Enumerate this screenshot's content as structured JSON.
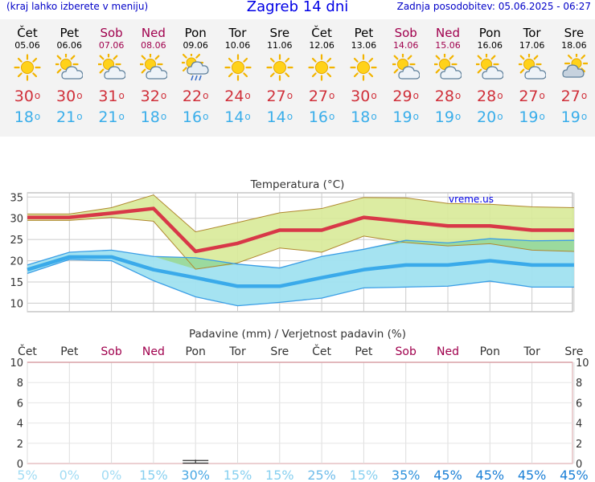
{
  "header": {
    "location_hint": "(kraj lahko izberete v meniju)",
    "title": "Zagreb 14 dni",
    "updated": "Zadnja posodobitev: 05.06.2025 - 06:27"
  },
  "days": [
    {
      "name": "Čet",
      "date": "05.06",
      "weekend": false,
      "icon": "sun-icon",
      "tmax": "30",
      "tmin": "18"
    },
    {
      "name": "Pet",
      "date": "06.06",
      "weekend": false,
      "icon": "sun-cloud-icon",
      "tmax": "30",
      "tmin": "21"
    },
    {
      "name": "Sob",
      "date": "07.06",
      "weekend": true,
      "icon": "sun-cloud-icon",
      "tmax": "31",
      "tmin": "21"
    },
    {
      "name": "Ned",
      "date": "08.06",
      "weekend": true,
      "icon": "sun-cloud-icon",
      "tmax": "32",
      "tmin": "18"
    },
    {
      "name": "Pon",
      "date": "09.06",
      "weekend": false,
      "icon": "sun-cloud-rain-icon",
      "tmax": "22",
      "tmin": "16"
    },
    {
      "name": "Tor",
      "date": "10.06",
      "weekend": false,
      "icon": "sun-icon",
      "tmax": "24",
      "tmin": "14"
    },
    {
      "name": "Sre",
      "date": "11.06",
      "weekend": false,
      "icon": "sun-icon",
      "tmax": "27",
      "tmin": "14"
    },
    {
      "name": "Čet",
      "date": "12.06",
      "weekend": false,
      "icon": "sun-icon",
      "tmax": "27",
      "tmin": "16"
    },
    {
      "name": "Pet",
      "date": "13.06",
      "weekend": false,
      "icon": "sun-icon",
      "tmax": "30",
      "tmin": "18"
    },
    {
      "name": "Sob",
      "date": "14.06",
      "weekend": true,
      "icon": "sun-cloud-icon",
      "tmax": "29",
      "tmin": "19"
    },
    {
      "name": "Ned",
      "date": "15.06",
      "weekend": true,
      "icon": "sun-cloud-icon",
      "tmax": "28",
      "tmin": "19"
    },
    {
      "name": "Pon",
      "date": "16.06",
      "weekend": false,
      "icon": "sun-cloud-icon",
      "tmax": "28",
      "tmin": "20"
    },
    {
      "name": "Tor",
      "date": "17.06",
      "weekend": false,
      "icon": "sun-cloud-icon",
      "tmax": "27",
      "tmin": "19"
    },
    {
      "name": "Sre",
      "date": "18.06",
      "weekend": false,
      "icon": "cloud-sun-icon",
      "tmax": "27",
      "tmin": "19"
    }
  ],
  "colors": {
    "max_line": "#d83848",
    "min_line": "#3aaaea",
    "max_band": "#d8ea98",
    "max_band_edge": "#b0882e",
    "min_band": "#a0e2f0",
    "min_band_edge": "#3a9ee6",
    "overlap": "#9ad890",
    "weekend_text": "#a0004d",
    "title_blue": "#0000e6"
  },
  "chart_data": [
    {
      "type": "line",
      "title": "Temperatura",
      "unit": "(°C)",
      "watermark": "vreme.us",
      "ylim": [
        8,
        36
      ],
      "yticks": [
        "10",
        "15",
        "20",
        "25",
        "30",
        "35"
      ],
      "grid": true,
      "x": [
        "05.06",
        "06.06",
        "07.06",
        "08.06",
        "09.06",
        "10.06",
        "11.06",
        "12.06",
        "13.06",
        "14.06",
        "15.06",
        "16.06",
        "17.06",
        "18.06"
      ],
      "series": [
        {
          "role": "max",
          "values": [
            30.2,
            30.2,
            31.2,
            32.3,
            22.2,
            24.1,
            27.2,
            27.2,
            30.2,
            29.2,
            28.2,
            28.2,
            27.2,
            27.2
          ]
        },
        {
          "role": "max_upper",
          "values": [
            31,
            31,
            32.5,
            35.5,
            26.8,
            29,
            31.3,
            32.3,
            34.9,
            34.8,
            33.5,
            33.3,
            32.7,
            32.5
          ]
        },
        {
          "role": "max_lower",
          "values": [
            29.5,
            29.5,
            30.2,
            29.3,
            18,
            19.5,
            23,
            22,
            25.8,
            24.3,
            23.5,
            24,
            22.5,
            22.2
          ]
        },
        {
          "role": "min",
          "values": [
            17.9,
            20.9,
            20.9,
            17.9,
            16,
            14,
            14,
            16,
            17.9,
            19,
            19,
            20,
            19,
            19
          ]
        },
        {
          "role": "min_upper",
          "values": [
            19,
            22,
            22.5,
            21,
            20.7,
            19.2,
            18.3,
            21,
            22.7,
            24.8,
            24.2,
            25.2,
            24.7,
            24.8
          ]
        },
        {
          "role": "min_lower",
          "values": [
            17,
            20.3,
            20,
            15.3,
            11.5,
            9.4,
            10.2,
            11.2,
            13.6,
            13.8,
            14,
            15.2,
            13.8,
            13.8
          ]
        }
      ]
    },
    {
      "type": "bar",
      "title": "Padavine (mm) / Verjetnost padavin (%)",
      "ylim": [
        0,
        10
      ],
      "yticks": [
        "0",
        "2",
        "4",
        "6",
        "8",
        "10"
      ],
      "x": [
        "Čet",
        "Pet",
        "Sob",
        "Ned",
        "Pon",
        "Tor",
        "Sre",
        "Čet",
        "Pet",
        "Sob",
        "Ned",
        "Pon",
        "Tor",
        "Sre"
      ],
      "weekend": [
        false,
        false,
        true,
        true,
        false,
        false,
        false,
        false,
        false,
        true,
        true,
        false,
        false,
        false
      ],
      "precip_mm": [
        0,
        0,
        0,
        0,
        0.3,
        0,
        0,
        0,
        0,
        0,
        0,
        0,
        0,
        0
      ],
      "probability_percent": [
        5,
        0,
        0,
        15,
        30,
        15,
        15,
        25,
        15,
        35,
        45,
        45,
        45,
        45
      ],
      "probability_labels": [
        "5%",
        "0%",
        "0%",
        "15%",
        "30%",
        "15%",
        "15%",
        "25%",
        "15%",
        "35%",
        "45%",
        "45%",
        "45%",
        "45%"
      ]
    }
  ]
}
